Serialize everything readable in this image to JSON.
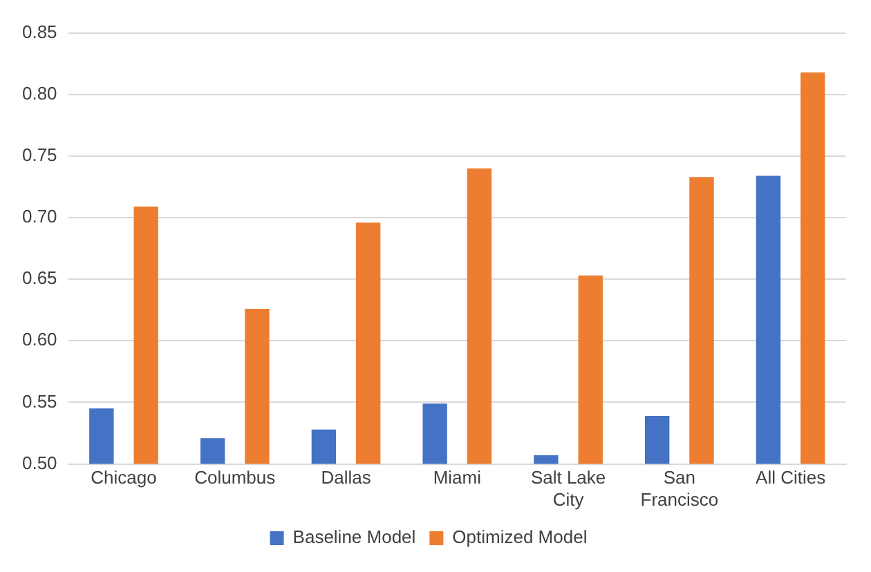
{
  "chart_data": {
    "type": "bar",
    "categories": [
      "Chicago",
      "Columbus",
      "Dallas",
      "Miami",
      "Salt Lake City",
      "San Francisco",
      "All Cities"
    ],
    "series": [
      {
        "name": "Baseline Model",
        "color": "#4472c4",
        "values": [
          0.545,
          0.521,
          0.528,
          0.549,
          0.507,
          0.539,
          0.734
        ]
      },
      {
        "name": "Optimized Model",
        "color": "#ed7d31",
        "values": [
          0.709,
          0.626,
          0.696,
          0.74,
          0.653,
          0.733,
          0.818
        ]
      }
    ],
    "ylim": [
      0.5,
      0.85
    ],
    "yticks": [
      {
        "value": 0.5,
        "label": "0.50"
      },
      0.55,
      {
        "value": 0.6,
        "label": "0.60"
      },
      0.65,
      {
        "value": 0.7,
        "label": "0.70"
      },
      0.75,
      {
        "value": 0.8,
        "label": "0.80"
      },
      0.85
    ],
    "grid": "y",
    "legend": "bottom"
  }
}
